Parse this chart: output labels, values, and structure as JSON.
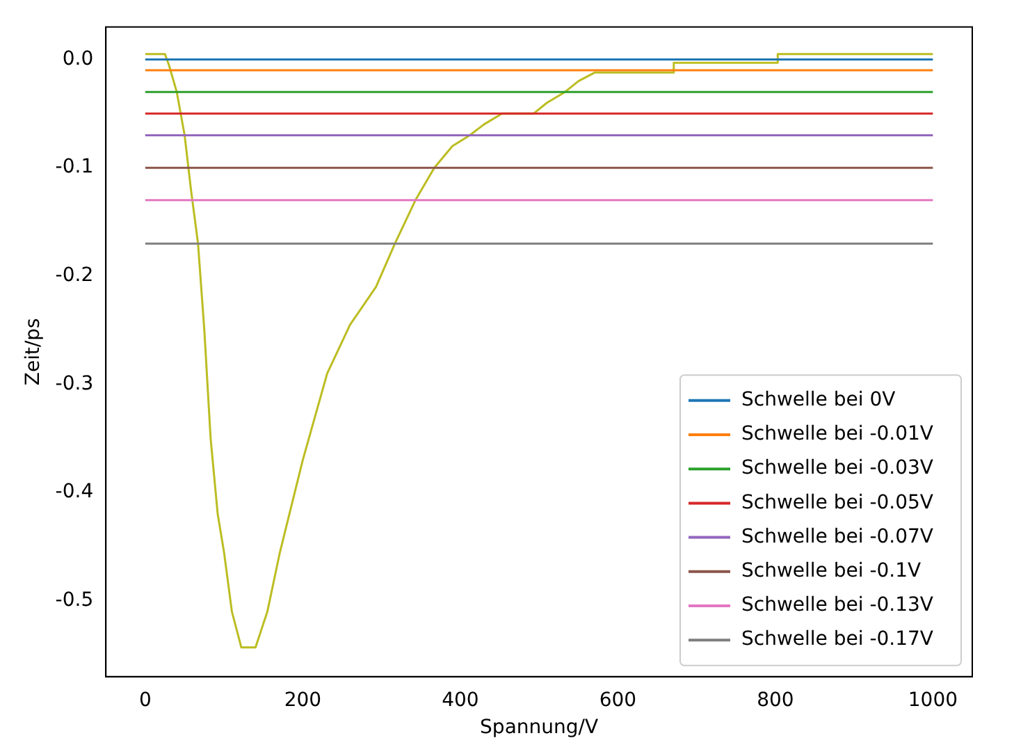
{
  "chart_data": {
    "type": "line",
    "xlabel": "Spannung/V",
    "ylabel": "Zeit/ps",
    "xlim": [
      -50,
      1050
    ],
    "ylim": [
      -0.57,
      0.03
    ],
    "xticks": [
      0,
      200,
      400,
      600,
      800,
      1000
    ],
    "yticks": [
      {
        "value": 0,
        "label": "0.0"
      },
      -0.1,
      -0.2,
      -0.3,
      -0.4,
      -0.5
    ],
    "grid": false,
    "legend": "bottom right",
    "marker": "none",
    "line_style": "solid",
    "series": [
      {
        "name": "Schwelle bei 0V",
        "color": "#1f77b4",
        "x": [
          0,
          1000
        ],
        "values": [
          0,
          0
        ]
      },
      {
        "name": "Schwelle bei -0.01V",
        "color": "#ff7f0e",
        "x": [
          0,
          1000
        ],
        "values": [
          -0.01,
          -0.01
        ]
      },
      {
        "name": "Schwelle bei -0.03V",
        "color": "#2ca02c",
        "x": [
          0,
          1000
        ],
        "values": [
          -0.03,
          -0.03
        ]
      },
      {
        "name": "Schwelle bei -0.05V",
        "color": "#d62728",
        "x": [
          0,
          1000
        ],
        "values": [
          -0.05,
          -0.05
        ]
      },
      {
        "name": "Schwelle bei -0.07V",
        "color": "#9467bd",
        "x": [
          0,
          1000
        ],
        "values": [
          -0.07,
          -0.07
        ]
      },
      {
        "name": "Schwelle bei -0.1V",
        "color": "#8c564b",
        "x": [
          0,
          1000
        ],
        "values": [
          -0.1,
          -0.1
        ]
      },
      {
        "name": "Schwelle bei -0.13V",
        "color": "#e377c2",
        "x": [
          0,
          1000
        ],
        "values": [
          -0.13,
          -0.13
        ]
      },
      {
        "name": "Schwelle bei -0.17V",
        "color": "#7f7f7f",
        "x": [
          0,
          1000
        ],
        "values": [
          -0.17,
          -0.17
        ]
      },
      {
        "color": "#bcbd22",
        "x": [
          0,
          25,
          30,
          40,
          50,
          58,
          67,
          75,
          83,
          92,
          100,
          110,
          122,
          140,
          155,
          171,
          200,
          231,
          260,
          293,
          317,
          343,
          367,
          390,
          412,
          430,
          453,
          493,
          510,
          533,
          550,
          571,
          671,
          671,
          803,
          803,
          1000
        ],
        "values": [
          0.005,
          0.005,
          -0.005,
          -0.03,
          -0.07,
          -0.12,
          -0.17,
          -0.25,
          -0.35,
          -0.42,
          -0.455,
          -0.51,
          -0.543,
          -0.543,
          -0.51,
          -0.455,
          -0.37,
          -0.29,
          -0.245,
          -0.21,
          -0.17,
          -0.13,
          -0.1,
          -0.08,
          -0.07,
          -0.06,
          -0.05,
          -0.05,
          -0.04,
          -0.03,
          -0.02,
          -0.012,
          -0.012,
          -0.003,
          -0.003,
          0.005,
          0.005
        ]
      }
    ]
  }
}
